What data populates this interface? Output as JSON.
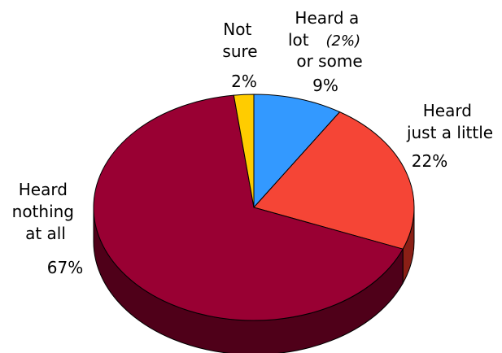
{
  "chart_data": {
    "type": "pie",
    "title": "",
    "start": "top",
    "direction": "clockwise",
    "tilt": "3d",
    "slices": [
      {
        "key": "heard-a-lot",
        "label_lines": [
          "Heard a",
          "lot",
          "or some"
        ],
        "note": "(2%)",
        "value": 9,
        "value_label": "9%",
        "color": "#3399ff",
        "side_color": "#1f5fa3"
      },
      {
        "key": "heard-little",
        "label_lines": [
          "Heard",
          "just a little"
        ],
        "value": 22,
        "value_label": "22%",
        "color": "#f54536",
        "side_color": "#8a1f16"
      },
      {
        "key": "heard-nothing",
        "label_lines": [
          "Heard",
          "nothing",
          "at all"
        ],
        "value": 67,
        "value_label": "67%",
        "color": "#990033",
        "side_color": "#4f0019"
      },
      {
        "key": "not-sure",
        "label_lines": [
          "Not",
          "sure"
        ],
        "value": 2,
        "value_label": "2%",
        "color": "#ffcc00",
        "side_color": "#9a7a00"
      }
    ]
  }
}
